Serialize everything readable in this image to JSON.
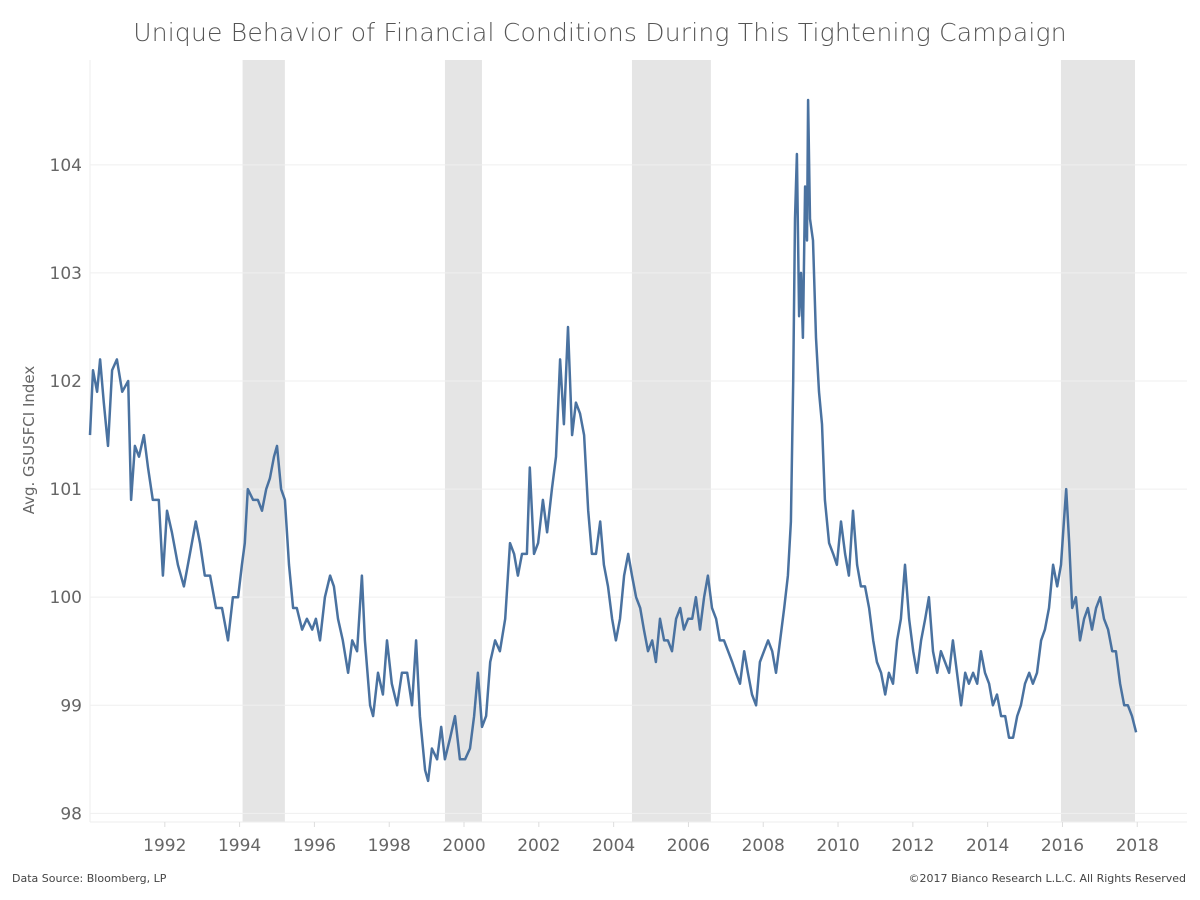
{
  "chart_data": {
    "type": "line",
    "title": "Unique Behavior of Financial Conditions During This Tightening Campaign",
    "xlabel": "",
    "ylabel": "Avg. GSUSFCI Index",
    "xlim": [
      1990.0,
      2019.33
    ],
    "ylim": [
      97.92,
      104.97
    ],
    "x_ticks": [
      "1992",
      "1994",
      "1996",
      "1998",
      "2000",
      "2002",
      "2004",
      "2006",
      "2008",
      "2010",
      "2012",
      "2014",
      "2016",
      "2018"
    ],
    "y_ticks": [
      "98",
      "99",
      "100",
      "101",
      "102",
      "103",
      "104"
    ],
    "grid": "horizontal",
    "line_color": "#4a72a0",
    "shade_color": "#e5e5e5",
    "shaded_periods": [
      [
        1994.08,
        1995.21
      ],
      [
        1999.49,
        2000.48
      ],
      [
        2004.49,
        2006.6
      ],
      [
        2015.96,
        2017.94
      ]
    ],
    "series": [
      {
        "points": [
          [
            1990.0,
            101.5
          ],
          [
            1990.08,
            102.1
          ],
          [
            1990.19,
            101.9
          ],
          [
            1990.27,
            102.2
          ],
          [
            1990.37,
            101.8
          ],
          [
            1990.48,
            101.4
          ],
          [
            1990.59,
            102.1
          ],
          [
            1990.72,
            102.2
          ],
          [
            1990.86,
            101.9
          ],
          [
            1991.02,
            102.0
          ],
          [
            1991.1,
            100.9
          ],
          [
            1991.2,
            101.4
          ],
          [
            1991.31,
            101.3
          ],
          [
            1991.44,
            101.5
          ],
          [
            1991.55,
            101.2
          ],
          [
            1991.68,
            100.9
          ],
          [
            1991.84,
            100.9
          ],
          [
            1991.95,
            100.2
          ],
          [
            1992.06,
            100.8
          ],
          [
            1992.19,
            100.6
          ],
          [
            1992.35,
            100.3
          ],
          [
            1992.51,
            100.1
          ],
          [
            1992.67,
            100.4
          ],
          [
            1992.83,
            100.7
          ],
          [
            1992.94,
            100.5
          ],
          [
            1993.07,
            100.2
          ],
          [
            1993.21,
            100.2
          ],
          [
            1993.37,
            99.9
          ],
          [
            1993.53,
            99.9
          ],
          [
            1993.69,
            99.6
          ],
          [
            1993.82,
            100.0
          ],
          [
            1993.96,
            100.0
          ],
          [
            1994.06,
            100.3
          ],
          [
            1994.14,
            100.5
          ],
          [
            1994.22,
            101.0
          ],
          [
            1994.36,
            100.9
          ],
          [
            1994.49,
            100.9
          ],
          [
            1994.6,
            100.8
          ],
          [
            1994.71,
            101.0
          ],
          [
            1994.81,
            101.1
          ],
          [
            1994.92,
            101.3
          ],
          [
            1995.0,
            101.4
          ],
          [
            1995.11,
            101.0
          ],
          [
            1995.21,
            100.9
          ],
          [
            1995.32,
            100.3
          ],
          [
            1995.43,
            99.9
          ],
          [
            1995.53,
            99.9
          ],
          [
            1995.67,
            99.7
          ],
          [
            1995.8,
            99.8
          ],
          [
            1995.94,
            99.7
          ],
          [
            1996.04,
            99.8
          ],
          [
            1996.15,
            99.6
          ],
          [
            1996.28,
            100.0
          ],
          [
            1996.42,
            100.2
          ],
          [
            1996.52,
            100.1
          ],
          [
            1996.63,
            99.8
          ],
          [
            1996.76,
            99.6
          ],
          [
            1996.9,
            99.3
          ],
          [
            1997.01,
            99.6
          ],
          [
            1997.14,
            99.5
          ],
          [
            1997.27,
            100.2
          ],
          [
            1997.35,
            99.6
          ],
          [
            1997.49,
            99.0
          ],
          [
            1997.57,
            98.9
          ],
          [
            1997.7,
            99.3
          ],
          [
            1997.83,
            99.1
          ],
          [
            1997.94,
            99.6
          ],
          [
            1998.07,
            99.2
          ],
          [
            1998.21,
            99.0
          ],
          [
            1998.34,
            99.3
          ],
          [
            1998.48,
            99.3
          ],
          [
            1998.61,
            99.0
          ],
          [
            1998.72,
            99.6
          ],
          [
            1998.82,
            98.9
          ],
          [
            1998.96,
            98.4
          ],
          [
            1999.04,
            98.3
          ],
          [
            1999.14,
            98.6
          ],
          [
            1999.28,
            98.5
          ],
          [
            1999.39,
            98.8
          ],
          [
            1999.49,
            98.5
          ],
          [
            1999.63,
            98.7
          ],
          [
            1999.76,
            98.9
          ],
          [
            1999.89,
            98.5
          ],
          [
            2000.03,
            98.5
          ],
          [
            2000.16,
            98.6
          ],
          [
            2000.27,
            98.9
          ],
          [
            2000.37,
            99.3
          ],
          [
            2000.48,
            98.8
          ],
          [
            2000.59,
            98.9
          ],
          [
            2000.7,
            99.4
          ],
          [
            2000.83,
            99.6
          ],
          [
            2000.96,
            99.5
          ],
          [
            2001.1,
            99.8
          ],
          [
            2001.23,
            100.5
          ],
          [
            2001.34,
            100.4
          ],
          [
            2001.44,
            100.2
          ],
          [
            2001.55,
            100.4
          ],
          [
            2001.68,
            100.4
          ],
          [
            2001.76,
            101.2
          ],
          [
            2001.87,
            100.4
          ],
          [
            2001.98,
            100.5
          ],
          [
            2002.11,
            100.9
          ],
          [
            2002.22,
            100.6
          ],
          [
            2002.35,
            101.0
          ],
          [
            2002.46,
            101.3
          ],
          [
            2002.57,
            102.2
          ],
          [
            2002.67,
            101.6
          ],
          [
            2002.78,
            102.5
          ],
          [
            2002.89,
            101.5
          ],
          [
            2002.99,
            101.8
          ],
          [
            2003.1,
            101.7
          ],
          [
            2003.21,
            101.5
          ],
          [
            2003.32,
            100.8
          ],
          [
            2003.42,
            100.4
          ],
          [
            2003.53,
            100.4
          ],
          [
            2003.64,
            100.7
          ],
          [
            2003.74,
            100.3
          ],
          [
            2003.85,
            100.1
          ],
          [
            2003.96,
            99.8
          ],
          [
            2004.06,
            99.6
          ],
          [
            2004.17,
            99.8
          ],
          [
            2004.28,
            100.2
          ],
          [
            2004.39,
            100.4
          ],
          [
            2004.49,
            100.2
          ],
          [
            2004.6,
            100.0
          ],
          [
            2004.71,
            99.9
          ],
          [
            2004.81,
            99.7
          ],
          [
            2004.92,
            99.5
          ],
          [
            2005.03,
            99.6
          ],
          [
            2005.13,
            99.4
          ],
          [
            2005.24,
            99.8
          ],
          [
            2005.35,
            99.6
          ],
          [
            2005.45,
            99.6
          ],
          [
            2005.56,
            99.5
          ],
          [
            2005.67,
            99.8
          ],
          [
            2005.78,
            99.9
          ],
          [
            2005.88,
            99.7
          ],
          [
            2005.99,
            99.8
          ],
          [
            2006.1,
            99.8
          ],
          [
            2006.2,
            100.0
          ],
          [
            2006.31,
            99.7
          ],
          [
            2006.42,
            100.0
          ],
          [
            2006.52,
            100.2
          ],
          [
            2006.63,
            99.9
          ],
          [
            2006.74,
            99.8
          ],
          [
            2006.84,
            99.6
          ],
          [
            2006.95,
            99.6
          ],
          [
            2007.06,
            99.5
          ],
          [
            2007.17,
            99.4
          ],
          [
            2007.27,
            99.3
          ],
          [
            2007.38,
            99.2
          ],
          [
            2007.49,
            99.5
          ],
          [
            2007.59,
            99.3
          ],
          [
            2007.7,
            99.1
          ],
          [
            2007.81,
            99.0
          ],
          [
            2007.91,
            99.4
          ],
          [
            2008.02,
            99.5
          ],
          [
            2008.13,
            99.6
          ],
          [
            2008.24,
            99.5
          ],
          [
            2008.34,
            99.3
          ],
          [
            2008.45,
            99.6
          ],
          [
            2008.56,
            99.9
          ],
          [
            2008.66,
            100.2
          ],
          [
            2008.74,
            100.7
          ],
          [
            2008.8,
            102.0
          ],
          [
            2008.85,
            103.5
          ],
          [
            2008.9,
            104.1
          ],
          [
            2008.96,
            102.6
          ],
          [
            2009.01,
            103.0
          ],
          [
            2009.06,
            102.4
          ],
          [
            2009.12,
            103.8
          ],
          [
            2009.17,
            103.3
          ],
          [
            2009.2,
            104.6
          ],
          [
            2009.25,
            103.5
          ],
          [
            2009.33,
            103.3
          ],
          [
            2009.41,
            102.4
          ],
          [
            2009.49,
            101.9
          ],
          [
            2009.57,
            101.6
          ],
          [
            2009.65,
            100.9
          ],
          [
            2009.76,
            100.5
          ],
          [
            2009.87,
            100.4
          ],
          [
            2009.97,
            100.3
          ],
          [
            2010.08,
            100.7
          ],
          [
            2010.19,
            100.4
          ],
          [
            2010.29,
            100.2
          ],
          [
            2010.4,
            100.8
          ],
          [
            2010.51,
            100.3
          ],
          [
            2010.61,
            100.1
          ],
          [
            2010.72,
            100.1
          ],
          [
            2010.83,
            99.9
          ],
          [
            2010.94,
            99.6
          ],
          [
            2011.04,
            99.4
          ],
          [
            2011.15,
            99.3
          ],
          [
            2011.26,
            99.1
          ],
          [
            2011.36,
            99.3
          ],
          [
            2011.47,
            99.2
          ],
          [
            2011.58,
            99.6
          ],
          [
            2011.68,
            99.8
          ],
          [
            2011.79,
            100.3
          ],
          [
            2011.9,
            99.8
          ],
          [
            2012.01,
            99.5
          ],
          [
            2012.11,
            99.3
          ],
          [
            2012.22,
            99.6
          ],
          [
            2012.33,
            99.8
          ],
          [
            2012.43,
            100.0
          ],
          [
            2012.54,
            99.5
          ],
          [
            2012.65,
            99.3
          ],
          [
            2012.75,
            99.5
          ],
          [
            2012.86,
            99.4
          ],
          [
            2012.97,
            99.3
          ],
          [
            2013.07,
            99.6
          ],
          [
            2013.18,
            99.3
          ],
          [
            2013.29,
            99.0
          ],
          [
            2013.4,
            99.3
          ],
          [
            2013.5,
            99.2
          ],
          [
            2013.61,
            99.3
          ],
          [
            2013.72,
            99.2
          ],
          [
            2013.82,
            99.5
          ],
          [
            2013.93,
            99.3
          ],
          [
            2014.04,
            99.2
          ],
          [
            2014.14,
            99.0
          ],
          [
            2014.25,
            99.1
          ],
          [
            2014.36,
            98.9
          ],
          [
            2014.47,
            98.9
          ],
          [
            2014.57,
            98.7
          ],
          [
            2014.68,
            98.7
          ],
          [
            2014.79,
            98.9
          ],
          [
            2014.89,
            99.0
          ],
          [
            2015.0,
            99.2
          ],
          [
            2015.11,
            99.3
          ],
          [
            2015.21,
            99.2
          ],
          [
            2015.32,
            99.3
          ],
          [
            2015.43,
            99.6
          ],
          [
            2015.53,
            99.7
          ],
          [
            2015.64,
            99.9
          ],
          [
            2015.75,
            100.3
          ],
          [
            2015.86,
            100.1
          ],
          [
            2015.96,
            100.3
          ],
          [
            2016.04,
            100.7
          ],
          [
            2016.1,
            101.0
          ],
          [
            2016.18,
            100.5
          ],
          [
            2016.26,
            99.9
          ],
          [
            2016.36,
            100.0
          ],
          [
            2016.47,
            99.6
          ],
          [
            2016.58,
            99.8
          ],
          [
            2016.68,
            99.9
          ],
          [
            2016.79,
            99.7
          ],
          [
            2016.9,
            99.9
          ],
          [
            2017.01,
            100.0
          ],
          [
            2017.11,
            99.8
          ],
          [
            2017.22,
            99.7
          ],
          [
            2017.33,
            99.5
          ],
          [
            2017.43,
            99.5
          ],
          [
            2017.54,
            99.2
          ],
          [
            2017.65,
            99.0
          ],
          [
            2017.75,
            99.0
          ],
          [
            2017.86,
            98.9
          ],
          [
            2017.97,
            98.75
          ]
        ]
      }
    ]
  },
  "footer": {
    "source": "Data Source: Bloomberg, LP",
    "copyright": "©2017 Bianco Research L.L.C.  All Rights Reserved"
  }
}
